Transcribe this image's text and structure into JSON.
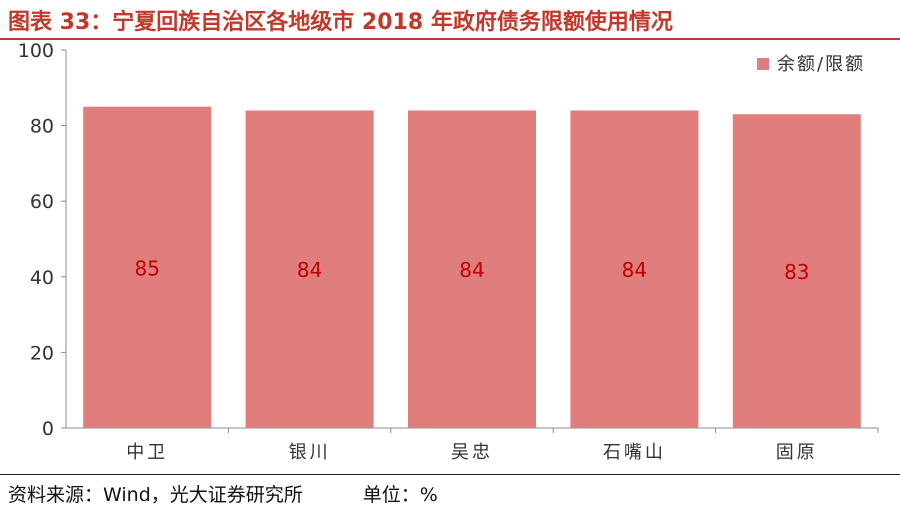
{
  "title": "图表 33：宁夏回族自治区各地级市 2018 年政府债务限额使用情况",
  "source": {
    "text": "资料来源：Wind，光大证券研究所",
    "unit": "单位：%"
  },
  "chart_data": {
    "type": "bar",
    "categories": [
      "中卫",
      "银川",
      "吴忠",
      "石嘴山",
      "固原"
    ],
    "series": [
      {
        "name": "余额/限额",
        "values": [
          85,
          84,
          84,
          84,
          83
        ],
        "color": "#e07e7e"
      }
    ],
    "data_labels": [
      "85",
      "84",
      "84",
      "84",
      "83"
    ],
    "data_label_color": "#c00000",
    "ylim": [
      0,
      100
    ],
    "yticks": [
      0,
      20,
      40,
      60,
      80,
      100
    ],
    "xlabel": "",
    "ylabel": "",
    "grid": false,
    "legend_position": "top-right"
  }
}
